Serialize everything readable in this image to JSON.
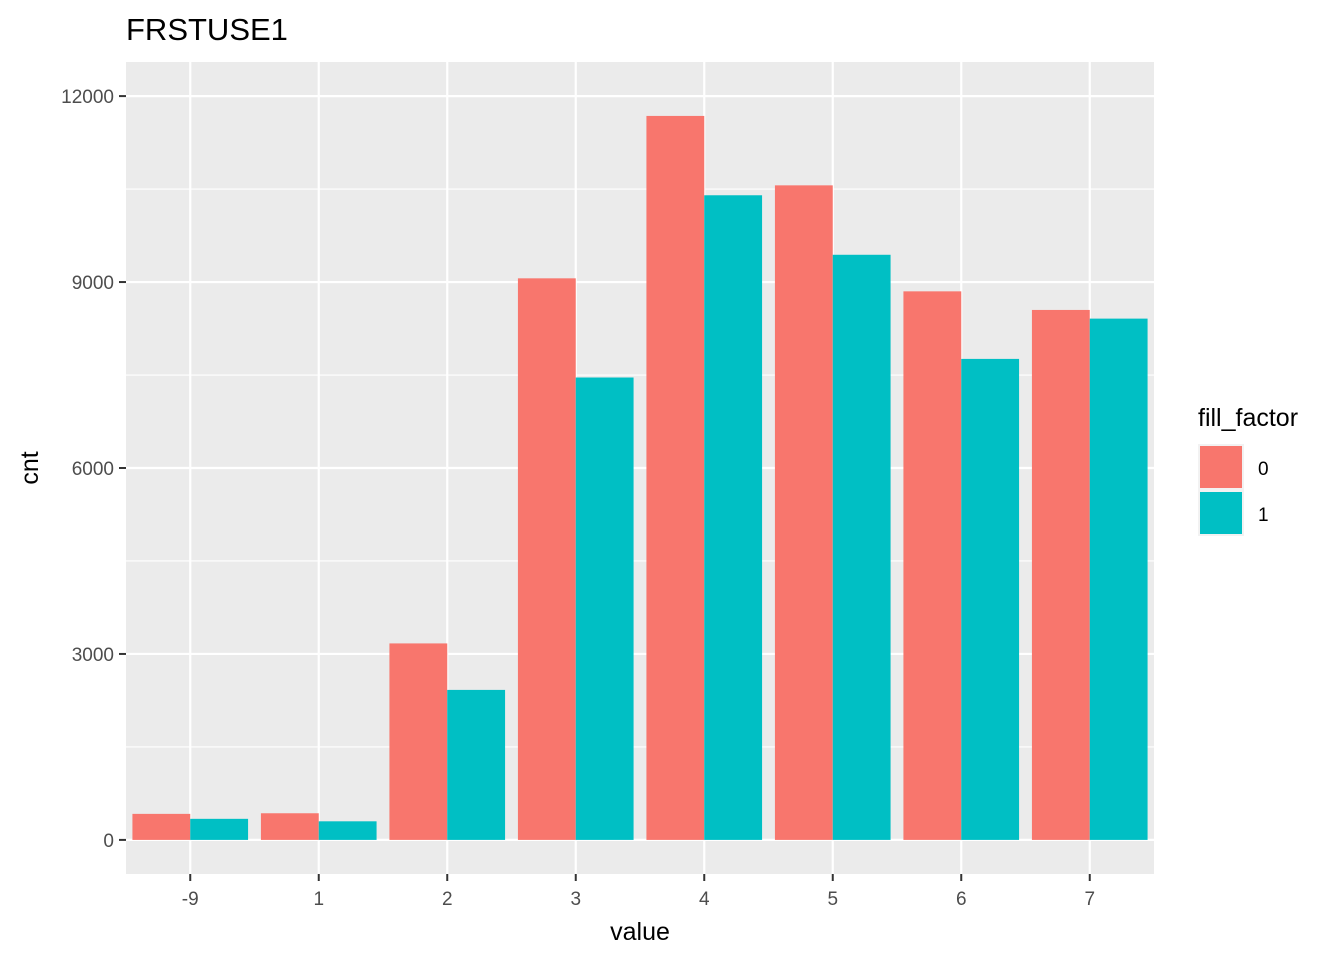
{
  "chart_data": {
    "type": "bar",
    "title": "FRSTUSE1",
    "xlabel": "value",
    "ylabel": "cnt",
    "categories": [
      "-9",
      "1",
      "2",
      "3",
      "4",
      "5",
      "6",
      "7"
    ],
    "series": [
      {
        "name": "0",
        "color": "#F8766D",
        "values": [
          420,
          430,
          3170,
          9060,
          11680,
          10560,
          8850,
          8550
        ]
      },
      {
        "name": "1",
        "color": "#00BFC4",
        "values": [
          340,
          300,
          2420,
          7460,
          10400,
          9440,
          7760,
          8410
        ]
      }
    ],
    "ylim": [
      -550,
      12550
    ],
    "yticks": [
      0,
      3000,
      6000,
      9000,
      12000
    ],
    "grid": true,
    "legend": {
      "title": "fill_factor",
      "position": "right"
    }
  }
}
